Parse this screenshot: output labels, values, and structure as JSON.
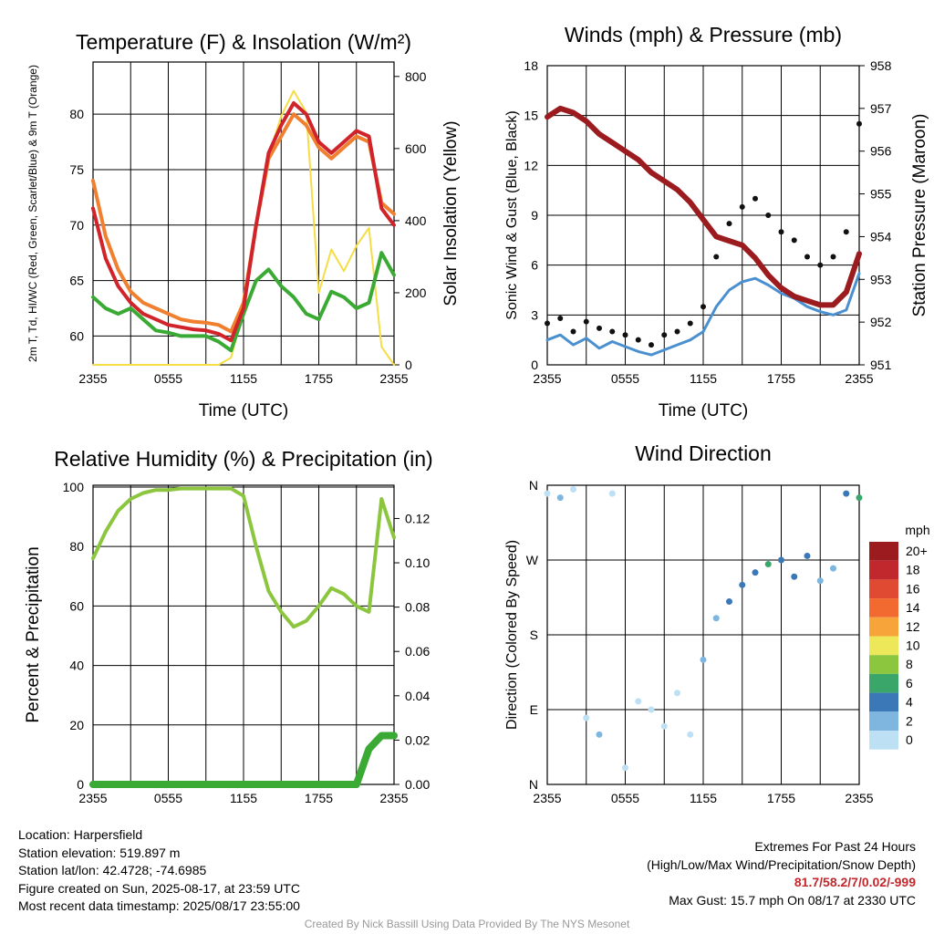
{
  "info": {
    "location": "Location: Harpersfield",
    "elevation": "Station elevation: 519.897 m",
    "latlon": "Station lat/lon: 42.4728; -74.6985",
    "created": "Figure created on Sun, 2025-08-17, at 23:59 UTC",
    "recent": "Most recent data timestamp: 2025/08/17 23:55:00"
  },
  "extremes": {
    "title": "Extremes For Past 24 Hours",
    "subtitle": "(High/Low/Max Wind/Precipitation/Snow Depth)",
    "values": "81.7/58.2/7/0.02/-999",
    "gust": "Max Gust: 15.7 mph On 08/17 at 2330 UTC"
  },
  "credit": "Created By Nick Bassill Using Data Provided By The NYS Mesonet",
  "colors": {
    "temp": "#d0232a",
    "dew": "#3aaa35",
    "heat": "#f08030",
    "solar": "#f5dd45",
    "pressure": "#9b1b1e",
    "wind": "#4a90d0",
    "gust": "#111111",
    "rh": "#8cc63f",
    "precip": "#3aaa35"
  },
  "chart_data": [
    {
      "type": "line",
      "title": "Temperature (F) & Insolation (W/m²)",
      "xlabel": "Time (UTC)",
      "ylabel": "2m T, Td, HI/WC (Red, Green, Scarlet/Blue) & 9m T (Orange)",
      "y2label": "Solar Insolation (Yellow)",
      "x_ticks": [
        "2355",
        "0555",
        "1155",
        "1755",
        "2355"
      ],
      "y_ticks": [
        60,
        65,
        70,
        75,
        80
      ],
      "y2_ticks": [
        0,
        200,
        400,
        600,
        800
      ],
      "ylim": [
        57.4,
        84.7
      ],
      "y2lim": [
        0,
        840
      ],
      "x": [
        0,
        1,
        2,
        3,
        4,
        5,
        6,
        7,
        8,
        9,
        10,
        11,
        12,
        13,
        14,
        15,
        16,
        17,
        18,
        19,
        20,
        21,
        22,
        23,
        24
      ],
      "series": [
        {
          "key": "temp",
          "axis": "left",
          "values": [
            71.5,
            67.0,
            64.5,
            63.0,
            62.0,
            61.5,
            61.0,
            60.8,
            60.6,
            60.5,
            60.2,
            59.6,
            62.5,
            70.0,
            76.5,
            79.0,
            81.0,
            80.0,
            77.5,
            76.5,
            77.5,
            78.5,
            78.0,
            71.5,
            70.0
          ]
        },
        {
          "key": "heat",
          "axis": "left",
          "values": [
            74.0,
            69.0,
            66.0,
            64.0,
            63.0,
            62.5,
            62.0,
            61.5,
            61.3,
            61.2,
            61.0,
            60.4,
            63.0,
            70.0,
            76.0,
            78.0,
            80.0,
            79.0,
            77.0,
            76.0,
            77.0,
            78.0,
            77.5,
            72.0,
            71.0
          ]
        },
        {
          "key": "dew",
          "axis": "left",
          "values": [
            63.5,
            62.5,
            62.0,
            62.5,
            61.5,
            60.5,
            60.3,
            60.0,
            60.0,
            60.0,
            59.5,
            58.7,
            62.0,
            65.0,
            66.0,
            64.5,
            63.5,
            62.0,
            61.5,
            64.0,
            63.5,
            62.5,
            63.0,
            67.5,
            65.5
          ]
        },
        {
          "key": "solar",
          "axis": "right",
          "values": [
            0,
            0,
            0,
            0,
            0,
            0,
            0,
            0,
            0,
            0,
            0,
            20,
            150,
            380,
            580,
            690,
            760,
            700,
            200,
            320,
            260,
            330,
            380,
            50,
            0
          ]
        }
      ]
    },
    {
      "type": "line",
      "title": "Winds (mph) & Pressure (mb)",
      "xlabel": "Time (UTC)",
      "ylabel": "Sonic Wind & Gust (Blue, Black)",
      "y2label": "Station Pressure (Maroon)",
      "x_ticks": [
        "2355",
        "0555",
        "1155",
        "1755",
        "2355"
      ],
      "y_ticks": [
        0,
        3,
        6,
        9,
        12,
        15,
        18
      ],
      "y2_ticks": [
        951,
        952,
        953,
        954,
        955,
        956,
        957,
        958
      ],
      "ylim": [
        0,
        18
      ],
      "y2lim": [
        951,
        958
      ],
      "x": [
        0,
        1,
        2,
        3,
        4,
        5,
        6,
        7,
        8,
        9,
        10,
        11,
        12,
        13,
        14,
        15,
        16,
        17,
        18,
        19,
        20,
        21,
        22,
        23,
        24
      ],
      "series": [
        {
          "key": "pressure",
          "axis": "right",
          "values": [
            956.8,
            957.0,
            956.9,
            956.7,
            956.4,
            956.2,
            956.0,
            955.8,
            955.5,
            955.3,
            955.1,
            954.8,
            954.4,
            954.0,
            953.9,
            953.8,
            953.5,
            953.1,
            952.8,
            952.6,
            952.5,
            952.4,
            952.4,
            952.7,
            953.6
          ]
        },
        {
          "key": "wind",
          "axis": "left",
          "values": [
            1.5,
            1.8,
            1.2,
            1.6,
            1.0,
            1.4,
            1.1,
            0.8,
            0.6,
            0.9,
            1.2,
            1.5,
            2.0,
            3.5,
            4.5,
            5.0,
            5.2,
            4.8,
            4.3,
            4.0,
            3.5,
            3.2,
            3.0,
            3.3,
            5.5
          ]
        },
        {
          "key": "gust",
          "axis": "left",
          "values": [
            2.5,
            2.8,
            2.0,
            2.6,
            2.2,
            2.0,
            1.8,
            1.5,
            1.2,
            1.8,
            2.0,
            2.5,
            3.5,
            6.5,
            8.5,
            9.5,
            10.0,
            9.0,
            8.0,
            7.5,
            6.5,
            6.0,
            6.5,
            8.0,
            14.5
          ]
        }
      ]
    },
    {
      "type": "line",
      "title": "Relative Humidity (%) & Precipitation (in)",
      "xlabel": "",
      "ylabel": "Percent & Precipitation",
      "x_ticks": [
        "2355",
        "0555",
        "1155",
        "1755",
        "2355"
      ],
      "y_ticks": [
        0,
        20,
        40,
        60,
        80,
        100
      ],
      "y2_ticks": [
        "0.00",
        "0.02",
        "0.04",
        "0.06",
        "0.08",
        "0.10",
        "0.12"
      ],
      "ylim": [
        0,
        100.6
      ],
      "y2lim": [
        0,
        0.135
      ],
      "x": [
        0,
        1,
        2,
        3,
        4,
        5,
        6,
        7,
        8,
        9,
        10,
        11,
        12,
        13,
        14,
        15,
        16,
        17,
        18,
        19,
        20,
        21,
        22,
        23,
        24
      ],
      "series": [
        {
          "key": "rh",
          "axis": "left",
          "values": [
            76,
            85,
            92,
            96,
            98,
            99,
            99,
            99.5,
            99.5,
            99.5,
            99.5,
            99.5,
            97,
            80,
            65,
            58,
            53,
            55,
            60,
            66,
            64,
            60,
            58,
            96,
            83
          ]
        },
        {
          "key": "precip",
          "axis": "right",
          "values": [
            0,
            0,
            0,
            0,
            0,
            0,
            0,
            0,
            0,
            0,
            0,
            0,
            0,
            0,
            0,
            0,
            0,
            0,
            0,
            0,
            0,
            0,
            0.016,
            0.022,
            0.022
          ]
        }
      ]
    },
    {
      "type": "scatter",
      "title": "Wind Direction",
      "xlabel": "",
      "ylabel": "Direction (Colored By Speed)",
      "x_ticks": [
        "2355",
        "0555",
        "1155",
        "1755",
        "2355"
      ],
      "y_ticks": [
        "N",
        "E",
        "S",
        "W",
        "N"
      ],
      "legend_title": "mph",
      "legend_labels": [
        "20+",
        "18",
        "16",
        "14",
        "12",
        "10",
        "8",
        "6",
        "4",
        "2",
        "0"
      ],
      "legend_colors": [
        "#9b1b1e",
        "#c0282d",
        "#e04a33",
        "#f26a30",
        "#f7a43b",
        "#ece85a",
        "#8cc63f",
        "#3aa66a",
        "#3a78b8",
        "#7eb6e0",
        "#bde0f5"
      ],
      "x": [
        0,
        1,
        2,
        3,
        4,
        5,
        6,
        7,
        8,
        9,
        10,
        11,
        12,
        13,
        14,
        15,
        16,
        17,
        18,
        19,
        20,
        21,
        22,
        23,
        24
      ],
      "direction_deg": [
        350,
        345,
        355,
        80,
        60,
        350,
        20,
        100,
        90,
        70,
        110,
        60,
        150,
        200,
        220,
        240,
        255,
        265,
        270,
        250,
        275,
        245,
        260,
        350,
        345
      ],
      "speed_mph": [
        1,
        2,
        1,
        1,
        2,
        1,
        1,
        0,
        1,
        1,
        1,
        1,
        2,
        3,
        4,
        4,
        5,
        6,
        5,
        4,
        4,
        3,
        3,
        4,
        6
      ]
    }
  ]
}
